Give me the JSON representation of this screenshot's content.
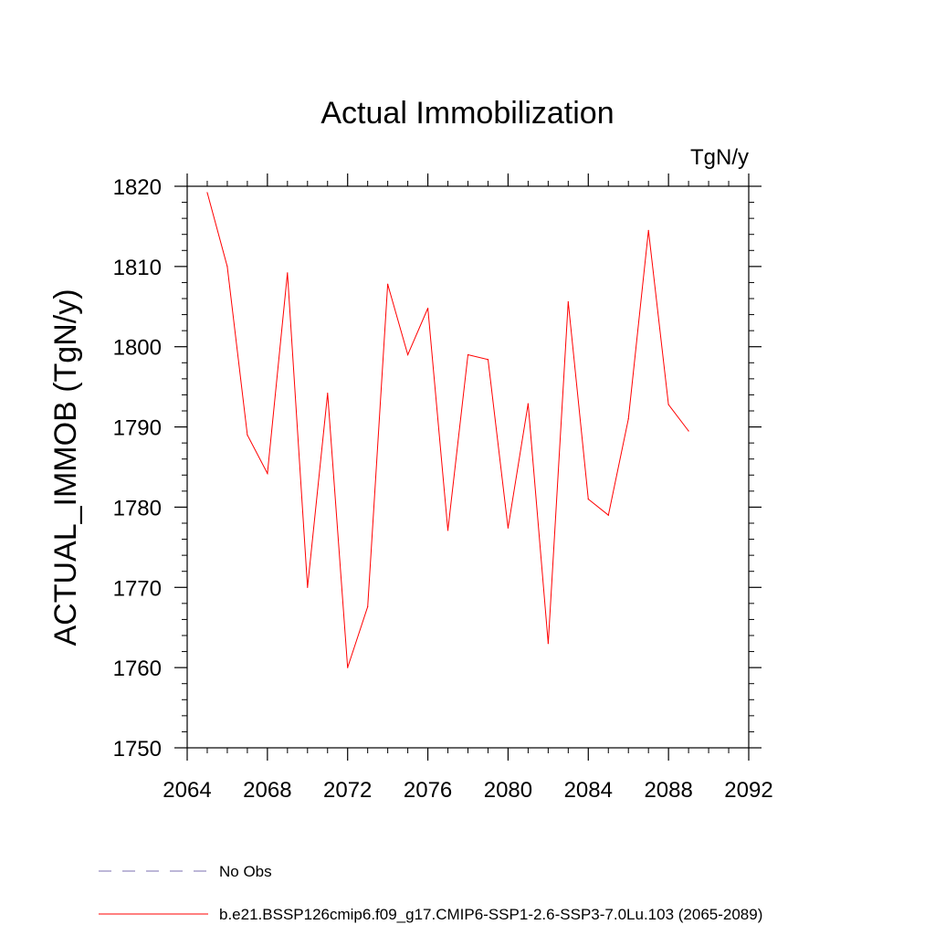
{
  "chart_data": {
    "type": "line",
    "title": "Actual Immobilization",
    "units": "TgN/y",
    "xlabel": "",
    "ylabel": "ACTUAL_IMMOB  (TgN/y)",
    "xlim": [
      2064,
      2092
    ],
    "ylim": [
      1750,
      1820
    ],
    "x_ticks": [
      2064,
      2068,
      2072,
      2076,
      2080,
      2084,
      2088,
      2092
    ],
    "x_tick_labels": [
      "2064",
      "2068",
      "2072",
      "2076",
      "2080",
      "2084",
      "2088",
      "2092"
    ],
    "y_ticks": [
      1750,
      1760,
      1770,
      1780,
      1790,
      1800,
      1810,
      1820
    ],
    "y_tick_labels": [
      "1750",
      "1760",
      "1770",
      "1780",
      "1790",
      "1800",
      "1810",
      "1820"
    ],
    "grid": false,
    "x": [
      2065,
      2066,
      2067,
      2068,
      2069,
      2070,
      2071,
      2072,
      2073,
      2074,
      2075,
      2076,
      2077,
      2078,
      2079,
      2080,
      2081,
      2082,
      2083,
      2084,
      2085,
      2086,
      2087,
      2088,
      2089
    ],
    "series": [
      {
        "name": "b.e21.BSSP126cmip6.f09_g17.CMIP6-SSP1-2.6-SSP3-7.0Lu.103 (2065-2089)",
        "color": "#ff0000",
        "style": "solid",
        "values": [
          1819.2,
          1810.0,
          1789.0,
          1784.2,
          1809.2,
          1770.0,
          1794.2,
          1760.0,
          1767.6,
          1807.8,
          1799.0,
          1804.8,
          1777.1,
          1799.0,
          1798.4,
          1777.4,
          1792.9,
          1763.0,
          1805.6,
          1781.0,
          1779.0,
          1791.0,
          1814.5,
          1792.8,
          1789.5
        ]
      }
    ],
    "legend": [
      {
        "label": "No Obs",
        "color": "#7b6fb0",
        "style": "dashed"
      },
      {
        "label": "b.e21.BSSP126cmip6.f09_g17.CMIP6-SSP1-2.6-SSP3-7.0Lu.103 (2065-2089)",
        "color": "#ff0000",
        "style": "solid"
      }
    ],
    "legend_position": "bottom-left"
  }
}
